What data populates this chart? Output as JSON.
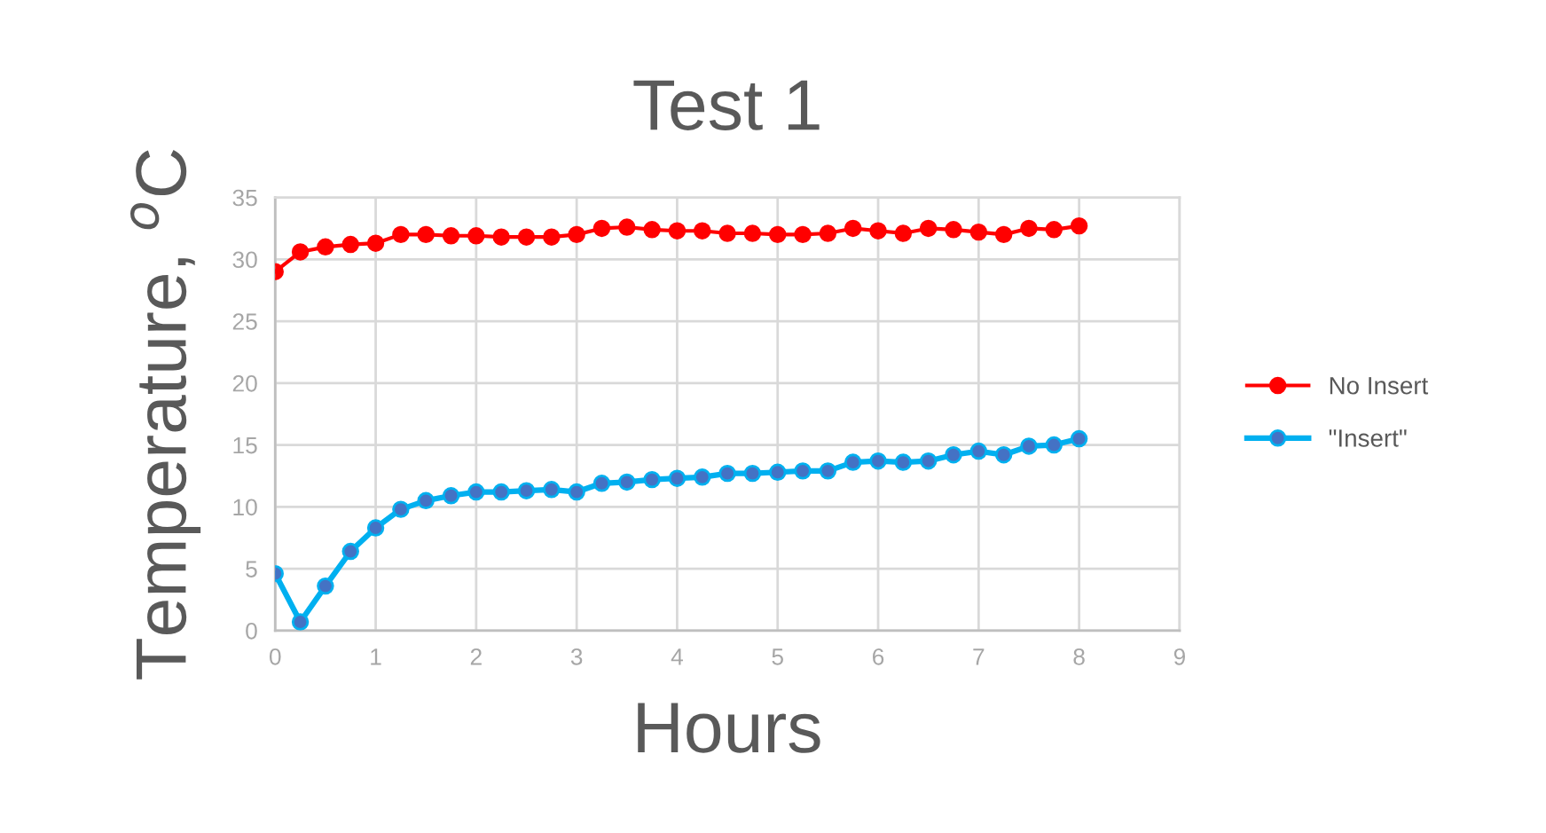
{
  "chart_data": {
    "type": "line",
    "title": "Test 1",
    "xlabel": "Hours",
    "ylabel": "Temperature, $^{o}$C",
    "x": [
      0,
      0.25,
      0.5,
      0.75,
      1,
      1.25,
      1.5,
      1.75,
      2,
      2.25,
      2.5,
      2.75,
      3,
      3.25,
      3.5,
      3.75,
      4,
      4.25,
      4.5,
      4.75,
      5,
      5.25,
      5.5,
      5.75,
      6,
      6.25,
      6.5,
      6.75,
      7,
      7.25,
      7.5,
      7.75,
      8
    ],
    "series": [
      {
        "name": "No Insert",
        "color": "#ff0000",
        "values": [
          29.0,
          30.6,
          31.0,
          31.2,
          31.3,
          32.0,
          32.0,
          31.9,
          31.9,
          31.8,
          31.8,
          31.8,
          32.0,
          32.5,
          32.6,
          32.4,
          32.3,
          32.3,
          32.1,
          32.1,
          32.0,
          32.0,
          32.1,
          32.5,
          32.3,
          32.1,
          32.5,
          32.4,
          32.2,
          32.0,
          32.5,
          32.4,
          32.7
        ]
      },
      {
        "name": "\"Insert\"",
        "color": "#00b0f0",
        "values": [
          4.6,
          0.7,
          3.6,
          6.4,
          8.3,
          9.8,
          10.5,
          10.9,
          11.2,
          11.2,
          11.3,
          11.4,
          11.2,
          11.9,
          12.0,
          12.2,
          12.3,
          12.4,
          12.7,
          12.7,
          12.8,
          12.9,
          12.9,
          13.6,
          13.7,
          13.6,
          13.7,
          14.2,
          14.5,
          14.2,
          14.9,
          15.0,
          15.5
        ]
      }
    ],
    "xlim": [
      0,
      9
    ],
    "xticks": [
      0,
      1,
      2,
      3,
      4,
      5,
      6,
      7,
      8,
      9
    ],
    "ylim": [
      0,
      35
    ],
    "yticks": [
      0,
      5,
      10,
      15,
      20,
      25,
      30,
      35
    ],
    "grid": true,
    "legend": "right",
    "marker": "circle",
    "line_style": "solid"
  }
}
